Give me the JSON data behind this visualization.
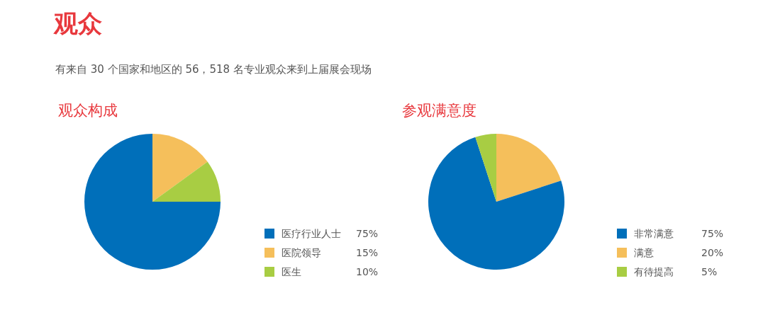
{
  "chart_data": [
    {
      "type": "other",
      "title": "观众",
      "subtitle": "有来自 30 个国家和地区的 56，518 名专业观众来到上届展会现场"
    },
    {
      "type": "pie",
      "title": "观众构成",
      "categories": [
        "医疗行业人士",
        "医院领导",
        "医生"
      ],
      "values": [
        75,
        15,
        10
      ],
      "colors": [
        "#006fba",
        "#f5bf5b",
        "#a8cd43"
      ],
      "value_labels": [
        "75%",
        "15%",
        "10%"
      ],
      "legend": "bottom right"
    },
    {
      "type": "pie",
      "title": "参观满意度",
      "categories": [
        "非常满意",
        "满意",
        "有待提高"
      ],
      "values": [
        75,
        20,
        5
      ],
      "colors": [
        "#006fba",
        "#f5bf5b",
        "#a8cd43"
      ],
      "value_labels": [
        "75%",
        "20%",
        "5%"
      ],
      "legend": "bottom right"
    }
  ]
}
